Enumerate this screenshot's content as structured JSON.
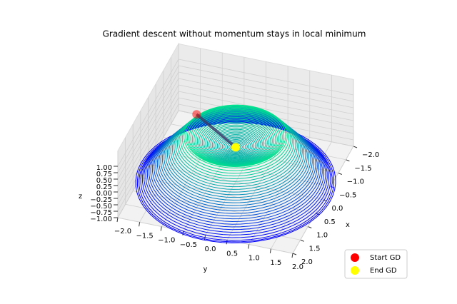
{
  "chart_data": {
    "type": "scatter3d",
    "title": "Gradient descent without momentum stays in local minimum",
    "x_label": "x",
    "y_label": "y",
    "z_label": "z",
    "xlim": [
      -2.0,
      2.0
    ],
    "ylim": [
      -2.0,
      2.0
    ],
    "zlim": [
      -1.0,
      1.0
    ],
    "xticks": [
      {
        "value": -2.0,
        "label": "−2.0"
      },
      {
        "value": -1.5,
        "label": "−1.5"
      },
      {
        "value": -1.0,
        "label": "−1.0"
      },
      {
        "value": -0.5,
        "label": "−0.5"
      },
      {
        "value": 0.0,
        "label": "0.0"
      },
      {
        "value": 0.5,
        "label": "0.5"
      },
      {
        "value": 1.0,
        "label": "1.0"
      },
      {
        "value": 1.5,
        "label": "1.5"
      },
      {
        "value": 2.0,
        "label": "2.0"
      }
    ],
    "yticks": [
      {
        "value": -2.0,
        "label": "−2.0"
      },
      {
        "value": -1.5,
        "label": "−1.5"
      },
      {
        "value": -1.0,
        "label": "−1.0"
      },
      {
        "value": -0.5,
        "label": "−0.5"
      },
      {
        "value": 0.0,
        "label": "0.0"
      },
      {
        "value": 0.5,
        "label": "0.5"
      },
      {
        "value": 1.0,
        "label": "1.0"
      },
      {
        "value": 1.5,
        "label": "1.5"
      },
      {
        "value": 2.0,
        "label": "2.0"
      }
    ],
    "zticks": [
      {
        "value": 1.0,
        "label": "1.00"
      },
      {
        "value": 0.75,
        "label": "0.75"
      },
      {
        "value": 0.5,
        "label": "0.50"
      },
      {
        "value": 0.25,
        "label": "0.25"
      },
      {
        "value": 0.0,
        "label": "0.00"
      },
      {
        "value": -0.25,
        "label": "−0.25"
      },
      {
        "value": -0.5,
        "label": "−0.50"
      },
      {
        "value": -0.75,
        "label": "−0.75"
      },
      {
        "value": -1.0,
        "label": "−1.00"
      }
    ],
    "legend": "lower right",
    "series": [
      {
        "name": "Start GD",
        "color": "#ff0000",
        "x": [
          -0.45
        ],
        "y": [
          -1.05
        ],
        "z": [
          0.8
        ]
      },
      {
        "name": "End GD",
        "color": "#ffff00",
        "x": [
          0.0
        ],
        "y": [
          0.0
        ],
        "z": [
          0.35
        ]
      }
    ]
  }
}
